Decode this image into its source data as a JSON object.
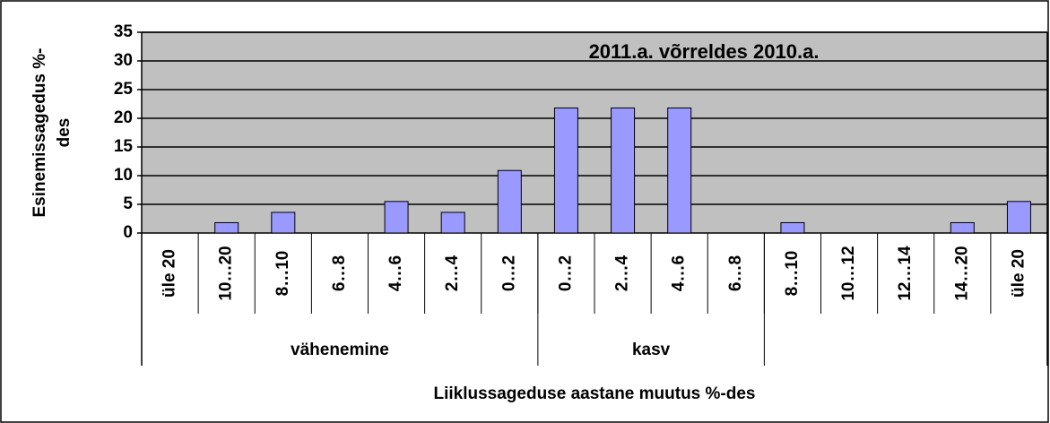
{
  "chart_data": {
    "type": "bar",
    "title": "2011.a. võrreldes 2010.a.",
    "ylabel": [
      "Esinemissagedus %-",
      "des"
    ],
    "xlabel": "Liiklussageduse aastane muutus %-des",
    "categories": [
      "üle 20",
      "10…20",
      "8…10",
      "6…8",
      "4…6",
      "2…4",
      "0…2",
      "0…2",
      "2…4",
      "4…6",
      "6…8",
      "8…10",
      "10…12",
      "12…14",
      "14…20",
      "üle 20"
    ],
    "category_groups": [
      "vähenemine",
      "vähenemine",
      "vähenemine",
      "vähenemine",
      "vähenemine",
      "vähenemine",
      "vähenemine",
      "kasv",
      "kasv",
      "kasv",
      "kasv",
      null,
      null,
      null,
      null,
      null
    ],
    "values": [
      0,
      1.8,
      3.6,
      0,
      5.5,
      3.6,
      10.9,
      21.8,
      21.8,
      21.8,
      0,
      1.8,
      0,
      0,
      1.8,
      5.5
    ],
    "color": "#9999ff",
    "ylim": [
      0,
      35
    ],
    "yticks": [
      0,
      5,
      10,
      15,
      20,
      25,
      30,
      35
    ],
    "grid": true
  }
}
